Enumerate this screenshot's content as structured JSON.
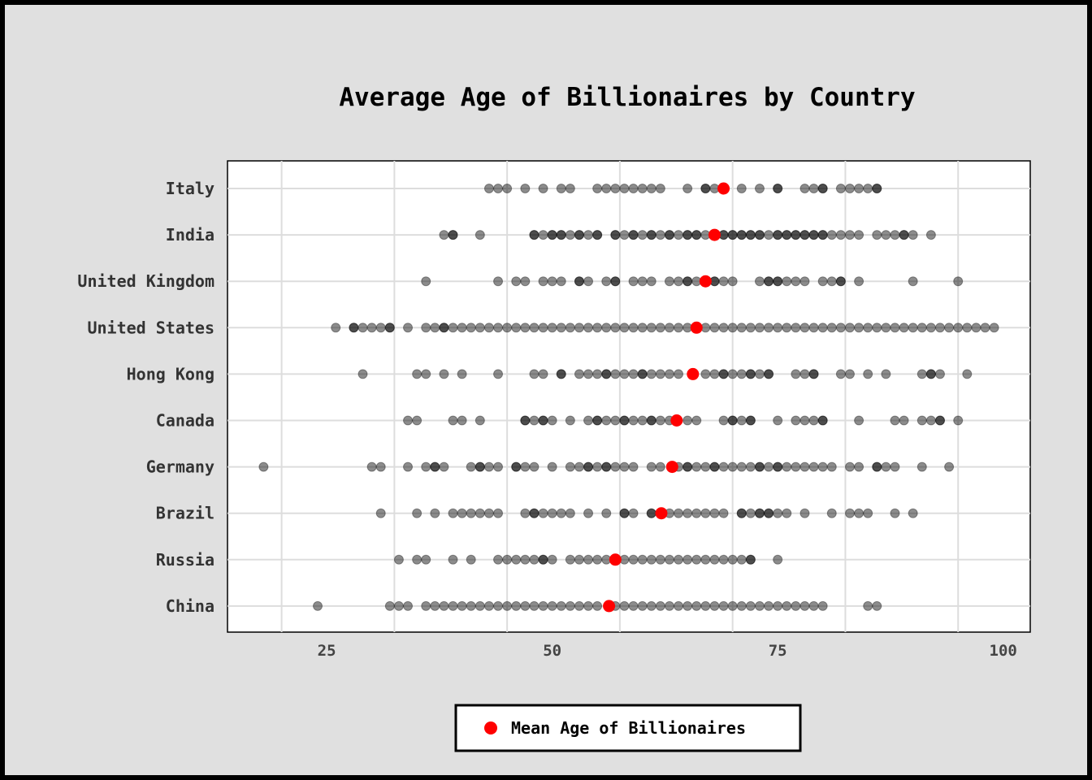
{
  "chart_data": {
    "type": "scatter",
    "title": "Average Age of Billionaires by Country",
    "xlabel": "",
    "ylabel": "",
    "xlim": [
      14,
      103
    ],
    "xticks": [
      25,
      50,
      75,
      100
    ],
    "grid": true,
    "legend": {
      "placement": "bottom-center",
      "label": "Mean Age of Billionaires"
    },
    "colors": {
      "points": "#000000",
      "mean": "#ff0000",
      "background": "#e0e0e0",
      "plot_bg": "#ffffff",
      "grid": "#dddddd"
    },
    "categories": [
      "Italy",
      "India",
      "United Kingdom",
      "United States",
      "Hong Kong",
      "Canada",
      "Germany",
      "Brazil",
      "Russia",
      "China"
    ],
    "series": [
      {
        "category": "Italy",
        "mean": 69,
        "ages": [
          43,
          44,
          45,
          47,
          49,
          51,
          52,
          55,
          56,
          57,
          58,
          59,
          60,
          61,
          62,
          65,
          67,
          67,
          68,
          71,
          73,
          75,
          75,
          78,
          79,
          80,
          80,
          82,
          83,
          84,
          85,
          86,
          86
        ]
      },
      {
        "category": "India",
        "mean": 68,
        "ages": [
          38,
          39,
          39,
          42,
          48,
          48,
          49,
          50,
          50,
          51,
          51,
          52,
          53,
          53,
          54,
          55,
          55,
          57,
          57,
          58,
          59,
          59,
          60,
          61,
          61,
          62,
          63,
          63,
          64,
          65,
          65,
          66,
          66,
          67,
          69,
          69,
          70,
          70,
          71,
          71,
          72,
          72,
          73,
          73,
          74,
          75,
          75,
          76,
          76,
          77,
          77,
          78,
          78,
          79,
          79,
          80,
          80,
          81,
          82,
          83,
          84,
          86,
          87,
          88,
          89,
          89,
          90,
          92
        ]
      },
      {
        "category": "United Kingdom",
        "mean": 67,
        "ages": [
          36,
          44,
          46,
          47,
          49,
          50,
          51,
          53,
          53,
          54,
          56,
          57,
          57,
          59,
          60,
          61,
          63,
          64,
          65,
          65,
          66,
          68,
          68,
          69,
          70,
          73,
          74,
          74,
          75,
          75,
          76,
          77,
          78,
          80,
          81,
          82,
          82,
          84,
          90,
          95
        ]
      },
      {
        "category": "United States",
        "mean": 66,
        "ages": [
          26,
          28,
          28,
          29,
          30,
          31,
          32,
          32,
          34,
          36,
          37,
          38,
          38,
          39,
          40,
          41,
          42,
          43,
          44,
          45,
          46,
          47,
          48,
          49,
          50,
          51,
          52,
          53,
          54,
          55,
          56,
          57,
          58,
          59,
          60,
          61,
          62,
          63,
          64,
          65,
          67,
          68,
          69,
          70,
          71,
          72,
          73,
          74,
          75,
          76,
          77,
          78,
          79,
          80,
          81,
          82,
          83,
          84,
          85,
          86,
          87,
          88,
          89,
          90,
          91,
          92,
          93,
          94,
          95,
          96,
          97,
          98,
          99
        ]
      },
      {
        "category": "Hong Kong",
        "mean": 65.6,
        "ages": [
          29,
          35,
          36,
          38,
          40,
          44,
          48,
          49,
          51,
          51,
          53,
          54,
          55,
          56,
          56,
          57,
          58,
          59,
          60,
          60,
          61,
          62,
          63,
          64,
          67,
          68,
          69,
          69,
          70,
          71,
          72,
          72,
          73,
          74,
          74,
          77,
          78,
          79,
          79,
          82,
          83,
          85,
          87,
          91,
          92,
          92,
          93,
          96
        ]
      },
      {
        "category": "Canada",
        "mean": 63.8,
        "ages": [
          34,
          35,
          39,
          40,
          42,
          47,
          47,
          48,
          49,
          49,
          50,
          52,
          54,
          55,
          55,
          56,
          57,
          58,
          58,
          59,
          60,
          61,
          61,
          62,
          63,
          65,
          66,
          69,
          70,
          70,
          71,
          72,
          72,
          75,
          77,
          78,
          79,
          80,
          80,
          84,
          88,
          89,
          91,
          92,
          93,
          93,
          95
        ]
      },
      {
        "category": "Germany",
        "mean": 63.3,
        "ages": [
          18,
          30,
          31,
          34,
          36,
          37,
          37,
          38,
          41,
          42,
          42,
          43,
          44,
          46,
          46,
          47,
          48,
          50,
          52,
          53,
          54,
          54,
          55,
          56,
          56,
          57,
          58,
          59,
          61,
          62,
          64,
          65,
          65,
          66,
          67,
          68,
          68,
          69,
          70,
          71,
          72,
          73,
          73,
          74,
          75,
          75,
          76,
          77,
          78,
          79,
          80,
          81,
          83,
          84,
          86,
          86,
          87,
          88,
          91,
          94
        ]
      },
      {
        "category": "Brazil",
        "mean": 62.1,
        "ages": [
          31,
          35,
          37,
          39,
          40,
          41,
          42,
          43,
          44,
          47,
          48,
          48,
          49,
          50,
          51,
          52,
          54,
          56,
          58,
          58,
          59,
          61,
          61,
          63,
          64,
          65,
          66,
          67,
          68,
          69,
          71,
          71,
          72,
          73,
          73,
          74,
          74,
          75,
          76,
          78,
          81,
          83,
          84,
          85,
          88,
          90
        ]
      },
      {
        "category": "Russia",
        "mean": 57,
        "ages": [
          33,
          35,
          36,
          39,
          41,
          44,
          45,
          46,
          47,
          48,
          49,
          49,
          50,
          52,
          53,
          54,
          55,
          56,
          58,
          59,
          60,
          61,
          62,
          63,
          64,
          65,
          66,
          67,
          68,
          69,
          70,
          71,
          72,
          72,
          75
        ]
      },
      {
        "category": "China",
        "mean": 56.3,
        "ages": [
          24,
          32,
          33,
          34,
          36,
          37,
          38,
          39,
          40,
          41,
          42,
          43,
          44,
          45,
          46,
          47,
          48,
          49,
          50,
          51,
          52,
          53,
          54,
          55,
          57,
          58,
          59,
          60,
          61,
          62,
          63,
          64,
          65,
          66,
          67,
          68,
          69,
          70,
          71,
          72,
          73,
          74,
          75,
          76,
          77,
          78,
          79,
          80,
          85,
          86
        ]
      }
    ]
  }
}
